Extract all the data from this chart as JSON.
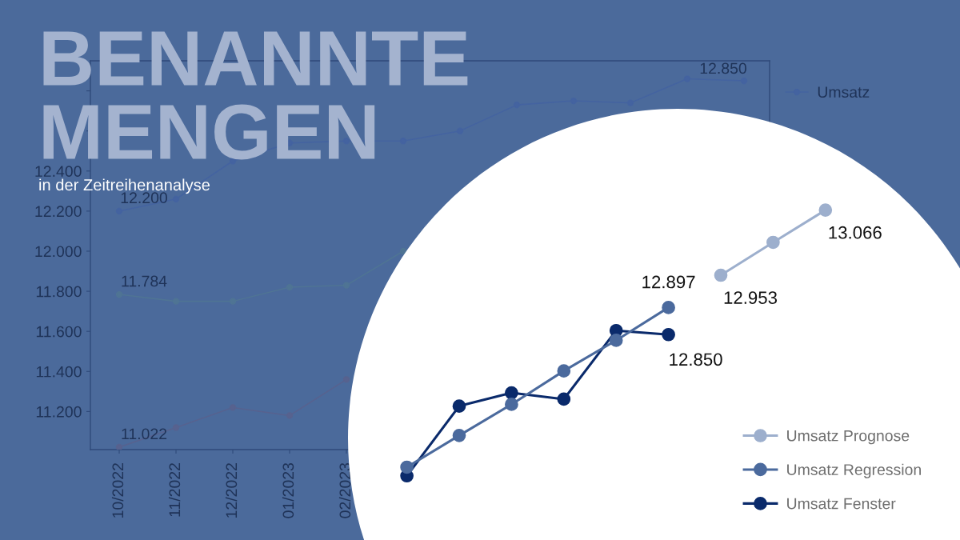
{
  "chart_data": [
    {
      "type": "line",
      "title": "BENANNTE\nMENGEN",
      "subtitle": "in der Zeitreihenanalyse",
      "categories": [
        "10/2022",
        "11/2022",
        "12/2022",
        "01/2023",
        "02/2023",
        null,
        null,
        null,
        null,
        null,
        null,
        null
      ],
      "series": [
        {
          "name": "Umsatz",
          "color": "#4463a0",
          "values": [
            12200,
            12260,
            12450,
            12540,
            12550,
            12550,
            12600,
            12730,
            12750,
            12740,
            12860,
            12850
          ],
          "value_labels": [
            "12.200",
            null,
            null,
            null,
            null,
            null,
            null,
            null,
            null,
            null,
            null,
            "12.850"
          ]
        },
        {
          "color": "#4f7494",
          "values": [
            11784,
            11750,
            11750,
            11820,
            11830,
            12000,
            null,
            null,
            null,
            null,
            null,
            null
          ],
          "value_labels": [
            "11.784",
            null,
            null,
            null,
            null,
            null,
            null,
            null,
            null,
            null,
            null,
            null
          ]
        },
        {
          "color": "#57628f",
          "values": [
            11022,
            11120,
            11220,
            11180,
            11360,
            null,
            null,
            null,
            null,
            null,
            null,
            null
          ],
          "value_labels": [
            "11.022",
            null,
            null,
            null,
            null,
            null,
            null,
            null,
            null,
            null,
            null,
            null
          ]
        }
      ],
      "ylim": [
        11010,
        12950
      ],
      "yticks": [
        {
          "value": 11200,
          "label": "11.200"
        },
        {
          "value": 11400,
          "label": "11.400"
        },
        {
          "value": 11600,
          "label": "11.600"
        },
        {
          "value": 11800,
          "label": "11.800"
        },
        {
          "value": 12000,
          "label": "12.000"
        },
        {
          "value": 12200,
          "label": "12.200"
        },
        {
          "value": 12400,
          "label": "12.400"
        },
        {
          "value": 12600,
          "label": null
        },
        {
          "value": 12800,
          "label": null
        }
      ],
      "marker": "circle",
      "legend": "top right"
    },
    {
      "type": "line",
      "tick_labels": false,
      "categories": [
        null,
        null,
        null,
        null,
        null,
        null,
        null,
        null,
        null
      ],
      "series": [
        {
          "name": "Umsatz Prognose",
          "color": "#9dafcd",
          "values": [
            null,
            null,
            null,
            null,
            null,
            null,
            12953,
            13010,
            13066
          ],
          "value_labels": [
            null,
            null,
            null,
            null,
            null,
            null,
            "12.953",
            null,
            "13.066"
          ]
        },
        {
          "name": "Umsatz Regression",
          "color": "#4b6a9d",
          "values": [
            12620,
            12675,
            12729,
            12787,
            12840,
            12897,
            null,
            null,
            null
          ],
          "value_labels": [
            null,
            null,
            null,
            null,
            null,
            "12.897",
            null,
            null,
            null
          ]
        },
        {
          "name": "Umsatz Fenster",
          "color": "#0a2a6b",
          "values": [
            12605,
            12726,
            12749,
            12738,
            12857,
            12850,
            null,
            null,
            null
          ],
          "value_labels": [
            null,
            null,
            null,
            null,
            null,
            "12.850",
            null,
            null,
            null
          ]
        }
      ],
      "marker": "circle",
      "legend": "bottom right"
    }
  ]
}
